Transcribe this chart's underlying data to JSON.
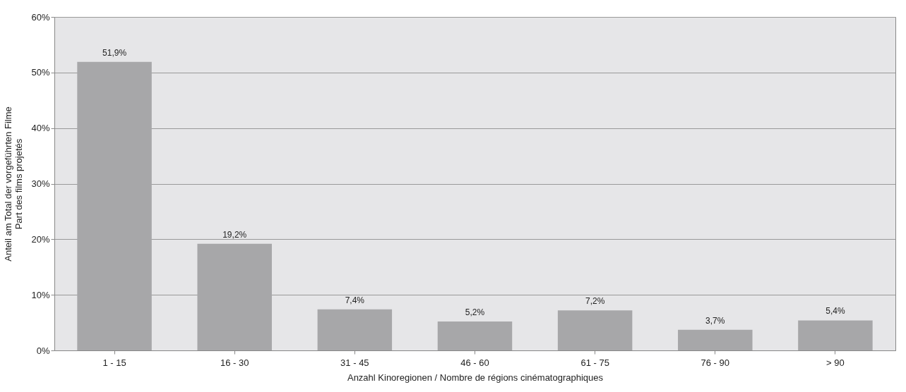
{
  "chart_data": {
    "type": "bar",
    "xlabel": "Anzahl Kinoregionen / Nombre de régions cinématographiques",
    "ylabel": "Anteil am Total der vorgeführten Filme\nPart des films projetés",
    "categories": [
      "1 - 15",
      "16 - 30",
      "31 - 45",
      "46 - 60",
      "61 - 75",
      "76 - 90",
      "> 90"
    ],
    "values": [
      51.9,
      19.2,
      7.4,
      5.2,
      7.2,
      3.7,
      5.4
    ],
    "value_labels": [
      "51,9%",
      "19,2%",
      "7,4%",
      "5,2%",
      "7,2%",
      "3,7%",
      "5,4%"
    ],
    "color": "#a7a7a9",
    "ylim": [
      0,
      60
    ],
    "yticks": [
      {
        "value": 0,
        "label": "0%"
      },
      {
        "value": 10,
        "label": "10%"
      },
      {
        "value": 20,
        "label": "20%"
      },
      {
        "value": 30,
        "label": "30%"
      },
      {
        "value": 40,
        "label": "40%"
      },
      {
        "value": 50,
        "label": "50%"
      },
      {
        "value": 60,
        "label": "60%"
      }
    ],
    "grid": "y"
  }
}
